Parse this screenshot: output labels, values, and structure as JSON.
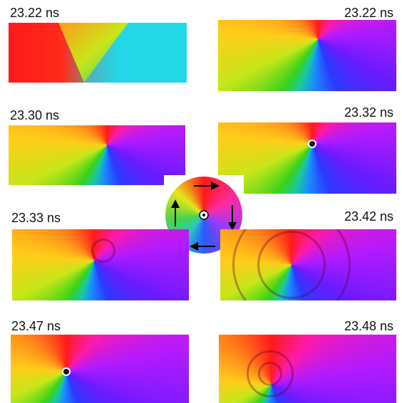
{
  "panels": [
    {
      "time": "23.22 ns"
    },
    {
      "time": "23.22 ns"
    },
    {
      "time": "23.30 ns"
    },
    {
      "time": "23.32 ns"
    },
    {
      "time": "23.33 ns"
    },
    {
      "time": "23.42 ns"
    },
    {
      "time": "23.47 ns"
    },
    {
      "time": "23.48 ns"
    }
  ]
}
